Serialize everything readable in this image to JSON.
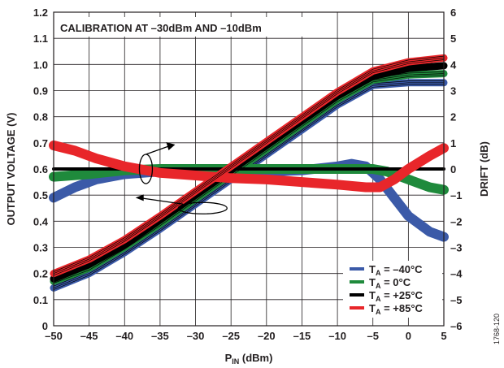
{
  "figure_id": "1768-120",
  "chart_data": {
    "type": "line",
    "title": "CALIBRATION AT –30dBm AND –10dBm",
    "xlabel_main": "P",
    "xlabel_sub": "IN",
    "xlabel_unit": " (dBm)",
    "ylabel": "OUTPUT VOLTAGE (V)",
    "y2label": "DRIFT (dB)",
    "xlim": [
      -50,
      5
    ],
    "ylim": [
      0,
      1.2
    ],
    "y2lim": [
      -6,
      6
    ],
    "xticks": [
      "–50",
      "–45",
      "–40",
      "–35",
      "–30",
      "–25",
      "–20",
      "–15",
      "–10",
      "–5",
      "0",
      "5"
    ],
    "xtick_values": [
      -50,
      -45,
      -40,
      -35,
      -30,
      -25,
      -20,
      -15,
      -10,
      -5,
      0,
      5
    ],
    "yticks": [
      "0",
      "0.1",
      "0.2",
      "0.3",
      "0.4",
      "0.5",
      "0.6",
      "0.7",
      "0.8",
      "0.9",
      "1.0",
      "1.1",
      "1.2"
    ],
    "ytick_values": [
      0,
      0.1,
      0.2,
      0.3,
      0.4,
      0.5,
      0.6,
      0.7,
      0.8,
      0.9,
      1.0,
      1.1,
      1.2
    ],
    "y2ticks": [
      "–6",
      "–5",
      "–4",
      "–3",
      "–2",
      "–1",
      "0",
      "1",
      "2",
      "3",
      "4",
      "5",
      "6"
    ],
    "y2tick_values": [
      -6,
      -5,
      -4,
      -3,
      -2,
      -1,
      0,
      1,
      2,
      3,
      4,
      5,
      6
    ],
    "grid": true,
    "legend_position": "bottom-right",
    "series": [
      {
        "name_main": "T",
        "name_sub": "A",
        "name_rest": " = –40°C",
        "color": "#3b5aa8",
        "output_voltage": [
          [
            -50,
            0.145
          ],
          [
            -45,
            0.2
          ],
          [
            -40,
            0.28
          ],
          [
            -35,
            0.37
          ],
          [
            -30,
            0.465
          ],
          [
            -25,
            0.56
          ],
          [
            -20,
            0.655
          ],
          [
            -15,
            0.75
          ],
          [
            -10,
            0.845
          ],
          [
            -5,
            0.92
          ],
          [
            0,
            0.93
          ],
          [
            5,
            0.93
          ]
        ],
        "drift_db": [
          [
            -50,
            -1.1
          ],
          [
            -47,
            -0.7
          ],
          [
            -44,
            -0.4
          ],
          [
            -40,
            -0.2
          ],
          [
            -35,
            -0.1
          ],
          [
            -30,
            -0.1
          ],
          [
            -20,
            -0.1
          ],
          [
            -15,
            -0.05
          ],
          [
            -10,
            0.1
          ],
          [
            -8,
            0.2
          ],
          [
            -6,
            0.1
          ],
          [
            -4,
            -0.4
          ],
          [
            -2,
            -1.1
          ],
          [
            0,
            -1.8
          ],
          [
            3,
            -2.4
          ],
          [
            5,
            -2.6
          ]
        ]
      },
      {
        "name_main": "T",
        "name_sub": "A",
        "name_rest": " = 0°C",
        "color": "#1f8a3c",
        "output_voltage": [
          [
            -50,
            0.17
          ],
          [
            -45,
            0.22
          ],
          [
            -40,
            0.3
          ],
          [
            -35,
            0.39
          ],
          [
            -30,
            0.485
          ],
          [
            -25,
            0.58
          ],
          [
            -20,
            0.675
          ],
          [
            -15,
            0.77
          ],
          [
            -10,
            0.865
          ],
          [
            -5,
            0.94
          ],
          [
            0,
            0.96
          ],
          [
            5,
            0.965
          ]
        ],
        "drift_db": [
          [
            -50,
            -0.3
          ],
          [
            -45,
            -0.2
          ],
          [
            -40,
            -0.05
          ],
          [
            -35,
            0.0
          ],
          [
            -30,
            0.0
          ],
          [
            -20,
            0.0
          ],
          [
            -15,
            0.0
          ],
          [
            -10,
            0.0
          ],
          [
            -5,
            0.0
          ],
          [
            -3,
            -0.1
          ],
          [
            0,
            -0.4
          ],
          [
            3,
            -0.7
          ],
          [
            5,
            -0.8
          ]
        ]
      },
      {
        "name_main": "T",
        "name_sub": "A",
        "name_rest": " = +25°C",
        "color": "#000000",
        "output_voltage": [
          [
            -50,
            0.18
          ],
          [
            -45,
            0.235
          ],
          [
            -40,
            0.31
          ],
          [
            -35,
            0.405
          ],
          [
            -30,
            0.5
          ],
          [
            -25,
            0.595
          ],
          [
            -20,
            0.69
          ],
          [
            -15,
            0.785
          ],
          [
            -10,
            0.88
          ],
          [
            -5,
            0.955
          ],
          [
            0,
            0.985
          ],
          [
            5,
            0.995
          ]
        ],
        "drift_db": [
          [
            -50,
            0.0
          ],
          [
            5,
            0.0
          ]
        ]
      },
      {
        "name_main": "T",
        "name_sub": "A",
        "name_rest": " = +85°C",
        "color": "#e8262a",
        "output_voltage": [
          [
            -50,
            0.2
          ],
          [
            -45,
            0.255
          ],
          [
            -40,
            0.33
          ],
          [
            -35,
            0.42
          ],
          [
            -30,
            0.515
          ],
          [
            -25,
            0.61
          ],
          [
            -20,
            0.705
          ],
          [
            -15,
            0.8
          ],
          [
            -10,
            0.895
          ],
          [
            -5,
            0.975
          ],
          [
            0,
            1.01
          ],
          [
            5,
            1.025
          ]
        ],
        "drift_db": [
          [
            -50,
            0.9
          ],
          [
            -47,
            0.7
          ],
          [
            -44,
            0.4
          ],
          [
            -40,
            0.1
          ],
          [
            -35,
            -0.15
          ],
          [
            -30,
            -0.25
          ],
          [
            -25,
            -0.35
          ],
          [
            -20,
            -0.4
          ],
          [
            -15,
            -0.5
          ],
          [
            -10,
            -0.6
          ],
          [
            -6,
            -0.7
          ],
          [
            -4,
            -0.7
          ],
          [
            -2,
            -0.4
          ],
          [
            0,
            0.0
          ],
          [
            3,
            0.5
          ],
          [
            5,
            0.8
          ]
        ]
      }
    ],
    "annotations": [
      {
        "kind": "ellipse-arrow",
        "target_axis": "right",
        "at_x": -37,
        "at_y2": 0
      },
      {
        "kind": "ellipse-arrow",
        "target_axis": "left",
        "at_x": -29,
        "at_y": 0.45
      }
    ]
  }
}
